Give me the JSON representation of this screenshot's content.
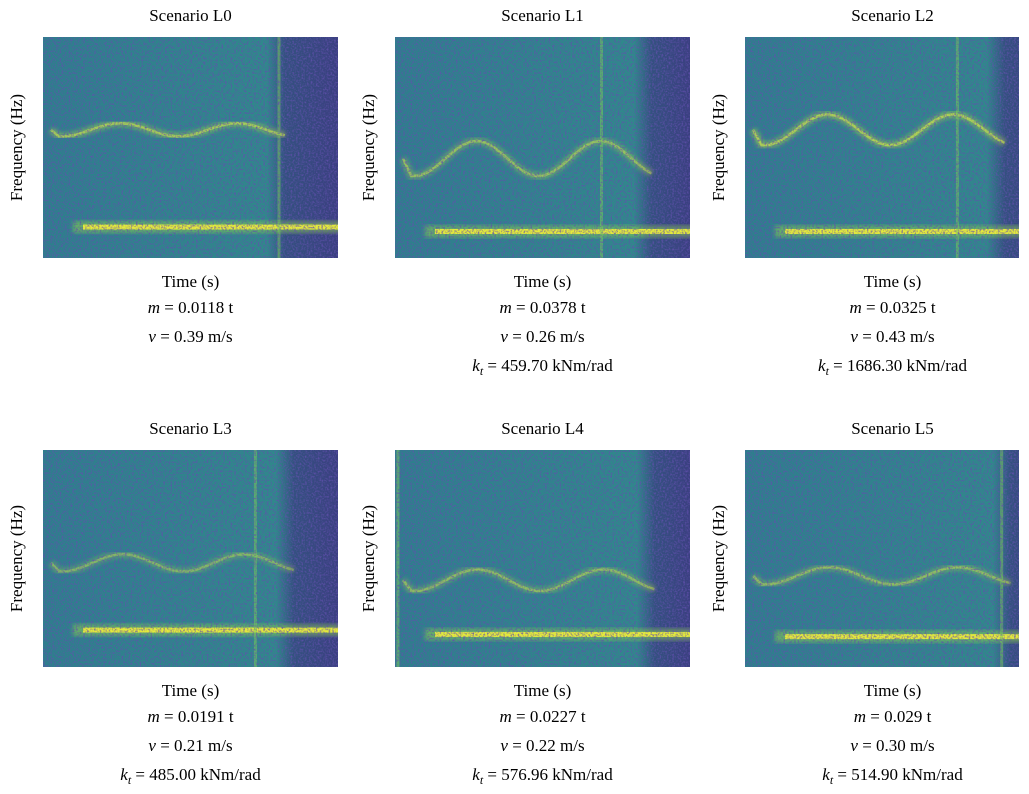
{
  "panels": [
    {
      "title": "Scenario L0",
      "xlabel": "Time (s)",
      "ylabel": "Frequency (Hz)",
      "params": [
        {
          "symbol": "m",
          "text": "= 0.0118 t"
        },
        {
          "symbol": "v",
          "text": "= 0.39 m/s"
        }
      ]
    },
    {
      "title": "Scenario L1",
      "xlabel": "Time (s)",
      "ylabel": "Frequency (Hz)",
      "params": [
        {
          "symbol": "m",
          "text": "= 0.0378 t"
        },
        {
          "symbol": "v",
          "text": "= 0.26 m/s"
        },
        {
          "symbol": "k",
          "subscript": "t",
          "text": "= 459.70 kNm/rad"
        }
      ]
    },
    {
      "title": "Scenario L2",
      "xlabel": "Time (s)",
      "ylabel": "Frequency (Hz)",
      "params": [
        {
          "symbol": "m",
          "text": "= 0.0325 t"
        },
        {
          "symbol": "v",
          "text": "= 0.43 m/s"
        },
        {
          "symbol": "k",
          "subscript": "t",
          "text": "= 1686.30 kNm/rad"
        }
      ]
    },
    {
      "title": "Scenario L3",
      "xlabel": "Time (s)",
      "ylabel": "Frequency (Hz)",
      "params": [
        {
          "symbol": "m",
          "text": "= 0.0191 t"
        },
        {
          "symbol": "v",
          "text": "= 0.21 m/s"
        },
        {
          "symbol": "k",
          "subscript": "t",
          "text": "= 485.00 kNm/rad"
        }
      ]
    },
    {
      "title": "Scenario L4",
      "xlabel": "Time (s)",
      "ylabel": "Frequency (Hz)",
      "params": [
        {
          "symbol": "m",
          "text": "= 0.0227 t"
        },
        {
          "symbol": "v",
          "text": "= 0.22 m/s"
        },
        {
          "symbol": "k",
          "subscript": "t",
          "text": "= 576.96 kNm/rad"
        }
      ]
    },
    {
      "title": "Scenario L5",
      "xlabel": "Time (s)",
      "ylabel": "Frequency (Hz)",
      "params": [
        {
          "symbol": "m",
          "text": "= 0.029 t"
        },
        {
          "symbol": "v",
          "text": "= 0.30 m/s"
        },
        {
          "symbol": "k",
          "subscript": "t",
          "text": "= 514.90 kNm/rad"
        }
      ]
    }
  ]
}
